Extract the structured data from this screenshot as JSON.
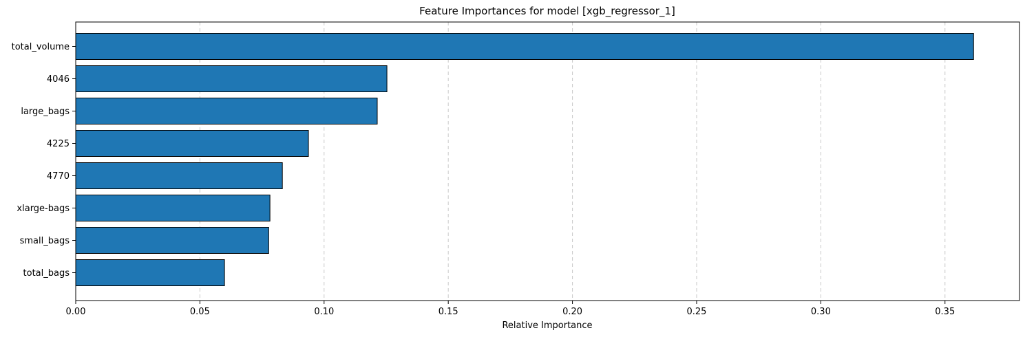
{
  "chart_data": {
    "type": "bar",
    "orientation": "horizontal",
    "title": "Feature Importances for model [xgb_regressor_1]",
    "xlabel": "Relative Importance",
    "ylabel": "",
    "categories": [
      "total_volume",
      "4046",
      "large_bags",
      "4225",
      "4770",
      "xlarge-bags",
      "small_bags",
      "total_bags"
    ],
    "values": [
      0.3615,
      0.1253,
      0.1214,
      0.0937,
      0.0832,
      0.0782,
      0.0777,
      0.0599
    ],
    "xlim": [
      0.0,
      0.38
    ],
    "xticks": [
      "0.00",
      "0.05",
      "0.10",
      "0.15",
      "0.20",
      "0.25",
      "0.30",
      "0.35"
    ],
    "grid": "x-dashed",
    "bar_color": "#1f77b4",
    "bar_edge_color": "#000000",
    "grid_color": "#c8c8c8"
  }
}
